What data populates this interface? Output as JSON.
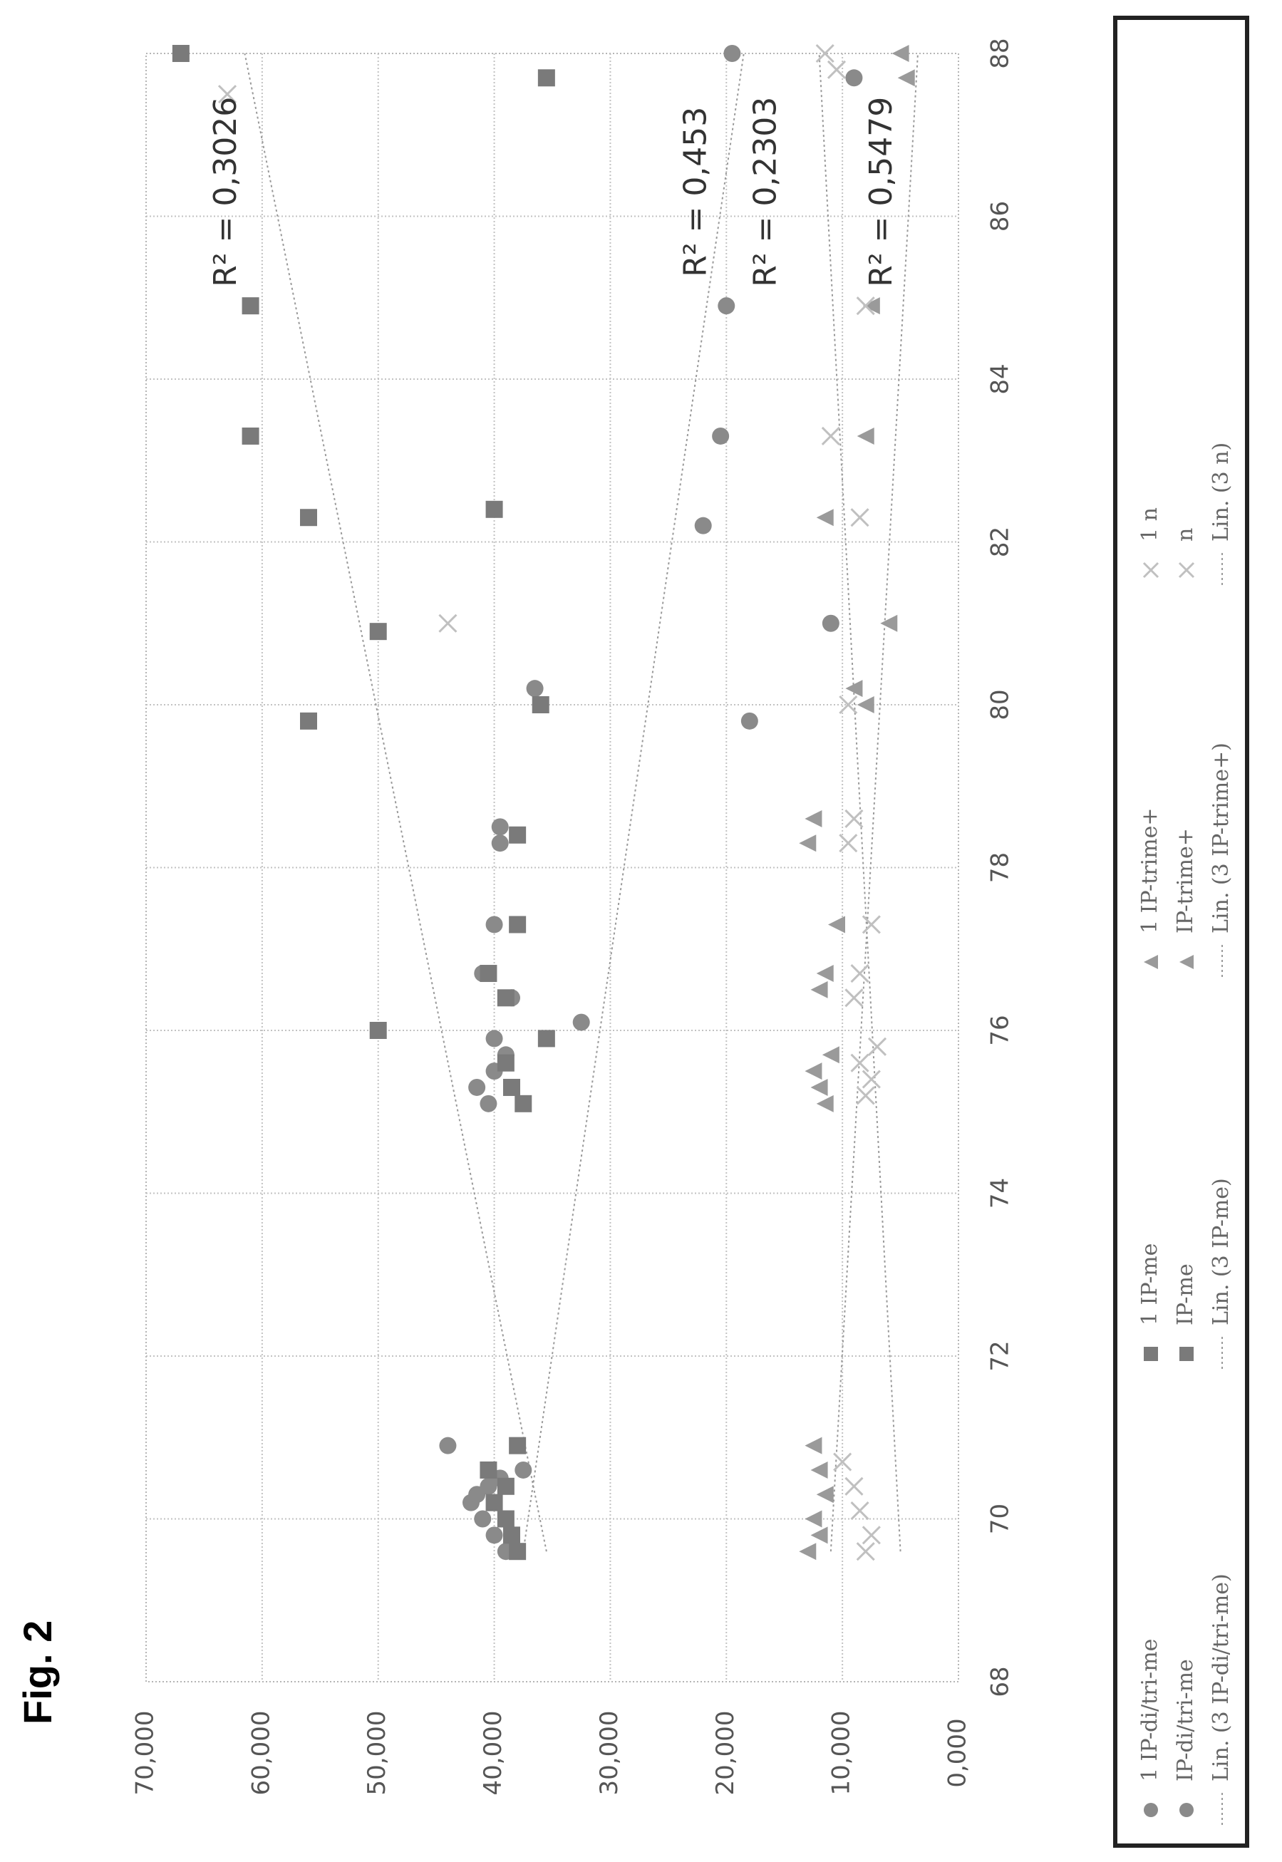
{
  "figure_label": "Fig. 2",
  "chart_data": {
    "type": "scatter",
    "title": "",
    "xlabel": "",
    "ylabel": "",
    "xlim": [
      68,
      88
    ],
    "ylim": [
      0,
      70000
    ],
    "x_ticks": [
      "68",
      "70",
      "72",
      "74",
      "76",
      "78",
      "80",
      "82",
      "84",
      "86",
      "88"
    ],
    "y_ticks": [
      "0,000",
      "10,000",
      "20,000",
      "30,000",
      "40,000",
      "50,000",
      "60,000",
      "70,000"
    ],
    "grid": true,
    "legend_position": "bottom",
    "colors": {
      "circle": "#8a8a8a",
      "square": "#7a7a7a",
      "triangle": "#9a9a9a",
      "cross": "#c0c0c0",
      "line": "#9a9a9a"
    },
    "series": [
      {
        "name": "1 IP-di/tri-me",
        "marker": "circle",
        "points": [
          [
            69.6,
            39000
          ],
          [
            69.8,
            40000
          ],
          [
            70.0,
            41000
          ],
          [
            70.2,
            42000
          ],
          [
            70.3,
            41500
          ],
          [
            70.4,
            40500
          ],
          [
            70.5,
            39500
          ],
          [
            70.9,
            44000
          ],
          [
            70.6,
            37500
          ],
          [
            75.1,
            40500
          ],
          [
            75.3,
            41500
          ],
          [
            75.5,
            40000
          ],
          [
            75.7,
            39000
          ],
          [
            75.9,
            40000
          ],
          [
            76.1,
            32500
          ],
          [
            76.4,
            38500
          ],
          [
            76.7,
            41000
          ],
          [
            77.3,
            40000
          ],
          [
            78.3,
            39500
          ],
          [
            78.5,
            39500
          ],
          [
            80.2,
            36500
          ],
          [
            81.0,
            11000
          ],
          [
            82.2,
            22000
          ],
          [
            83.3,
            20500
          ],
          [
            84.9,
            20000
          ],
          [
            87.7,
            9000
          ],
          [
            88.0,
            19500
          ],
          [
            79.8,
            18000
          ]
        ]
      },
      {
        "name": "1 IP-me",
        "marker": "square",
        "points": [
          [
            69.6,
            38000
          ],
          [
            69.8,
            38500
          ],
          [
            70.0,
            39000
          ],
          [
            70.2,
            40000
          ],
          [
            70.4,
            39000
          ],
          [
            70.6,
            40500
          ],
          [
            70.9,
            38000
          ],
          [
            75.1,
            37500
          ],
          [
            75.3,
            38500
          ],
          [
            75.6,
            39000
          ],
          [
            75.9,
            35500
          ],
          [
            76.0,
            50000
          ],
          [
            76.4,
            39000
          ],
          [
            76.7,
            40500
          ],
          [
            77.3,
            38000
          ],
          [
            78.4,
            38000
          ],
          [
            80.0,
            36000
          ],
          [
            79.8,
            56000
          ],
          [
            80.9,
            50000
          ],
          [
            82.3,
            56000
          ],
          [
            82.4,
            40000
          ],
          [
            83.3,
            61000
          ],
          [
            84.9,
            61000
          ],
          [
            87.7,
            35500
          ],
          [
            88.0,
            67000
          ]
        ]
      },
      {
        "name": "1 IP-trime+",
        "marker": "triangle",
        "points": [
          [
            69.6,
            13000
          ],
          [
            69.8,
            12000
          ],
          [
            70.0,
            12500
          ],
          [
            70.3,
            11500
          ],
          [
            70.6,
            12000
          ],
          [
            70.9,
            12500
          ],
          [
            75.1,
            11500
          ],
          [
            75.3,
            12000
          ],
          [
            75.5,
            12500
          ],
          [
            75.7,
            11000
          ],
          [
            76.5,
            12000
          ],
          [
            76.7,
            11500
          ],
          [
            77.3,
            10500
          ],
          [
            78.3,
            13000
          ],
          [
            78.6,
            12500
          ],
          [
            80.0,
            8000
          ],
          [
            80.2,
            9000
          ],
          [
            81.0,
            6000
          ],
          [
            82.3,
            11500
          ],
          [
            83.3,
            8000
          ],
          [
            84.9,
            7500
          ],
          [
            87.7,
            4500
          ],
          [
            88.0,
            5000
          ]
        ]
      },
      {
        "name": "1 n",
        "marker": "cross",
        "points": [
          [
            69.6,
            8000
          ],
          [
            69.8,
            7500
          ],
          [
            70.1,
            8500
          ],
          [
            70.4,
            9000
          ],
          [
            70.7,
            10000
          ],
          [
            75.2,
            8000
          ],
          [
            75.4,
            7500
          ],
          [
            75.6,
            8500
          ],
          [
            75.8,
            7000
          ],
          [
            76.4,
            9000
          ],
          [
            76.7,
            8500
          ],
          [
            77.3,
            7500
          ],
          [
            78.3,
            9500
          ],
          [
            78.6,
            9000
          ],
          [
            80.0,
            9500
          ],
          [
            81.0,
            44000
          ],
          [
            82.3,
            8500
          ],
          [
            83.3,
            11000
          ],
          [
            84.9,
            8000
          ],
          [
            87.8,
            10500
          ],
          [
            88.0,
            11500
          ],
          [
            87.5,
            63000
          ]
        ]
      }
    ],
    "trendlines": [
      {
        "name": "Lin. (3 IP-di/tri-me)",
        "from": [
          69.6,
          37500
        ],
        "to": [
          88.0,
          18500
        ]
      },
      {
        "name": "Lin. (3 IP-me)",
        "from": [
          69.6,
          35500
        ],
        "to": [
          88.0,
          61500
        ]
      },
      {
        "name": "Lin. (3 IP-trime+)",
        "from": [
          69.6,
          11000
        ],
        "to": [
          88.0,
          3500
        ]
      },
      {
        "name": "Lin. (3 n)",
        "from": [
          69.6,
          5000
        ],
        "to": [
          88.0,
          12000
        ]
      }
    ],
    "annotations": [
      {
        "text": "R² = 0,3026",
        "x": 86.3,
        "y": 63000
      },
      {
        "text": "R² = 0,453",
        "x": 86.3,
        "y": 22500
      },
      {
        "text": "R² = 0,2303",
        "x": 86.3,
        "y": 16500
      },
      {
        "text": "R² = 0,5479",
        "x": 86.3,
        "y": 6500
      }
    ],
    "legend": [
      {
        "label": "1 IP-di/tri-me",
        "marker": "circle"
      },
      {
        "label": "1 IP-me",
        "marker": "square"
      },
      {
        "label": "1 IP-trime+",
        "marker": "triangle"
      },
      {
        "label": "1 n",
        "marker": "cross"
      },
      {
        "label": "IP-di/tri-me",
        "marker": "circle"
      },
      {
        "label": "IP-me",
        "marker": "square"
      },
      {
        "label": "IP-trime+",
        "marker": "triangle"
      },
      {
        "label": "n",
        "marker": "cross"
      },
      {
        "label": "Lin. (3 IP-di/tri-me)",
        "marker": "line"
      },
      {
        "label": "Lin. (3 IP-me)",
        "marker": "line"
      },
      {
        "label": "Lin. (3 IP-trime+)",
        "marker": "line"
      },
      {
        "label": "Lin. (3 n)",
        "marker": "line"
      }
    ]
  }
}
